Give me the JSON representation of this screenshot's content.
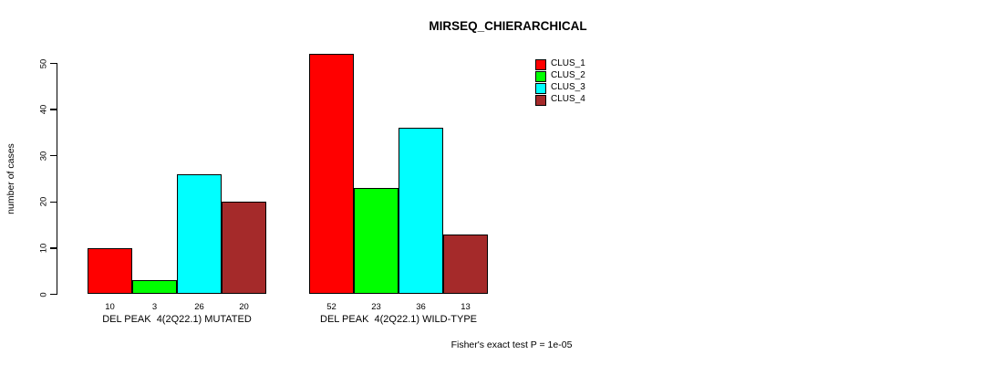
{
  "chart_data": {
    "type": "bar",
    "title": "MIRSEQ_CHIERARCHICAL",
    "xlabel": "",
    "ylabel": "number of cases",
    "ylim": [
      0,
      52
    ],
    "yticks": [
      0,
      10,
      20,
      30,
      40,
      50
    ],
    "grid": false,
    "legend_position": "top-right",
    "categories": [
      "DEL PEAK  4(2Q22.1) MUTATED",
      "DEL PEAK  4(2Q22.1) WILD-TYPE"
    ],
    "series": [
      {
        "name": "CLUS_1",
        "color": "#ff0000",
        "values": [
          10,
          52
        ]
      },
      {
        "name": "CLUS_2",
        "color": "#00ff00",
        "values": [
          3,
          23
        ]
      },
      {
        "name": "CLUS_3",
        "color": "#00ffff",
        "values": [
          26,
          36
        ]
      },
      {
        "name": "CLUS_4",
        "color": "#a52a2a",
        "values": [
          20,
          13
        ]
      }
    ],
    "bar_value_labels": [
      [
        "10",
        "3",
        "26",
        "20"
      ],
      [
        "52",
        "23",
        "36",
        "13"
      ]
    ],
    "annotation": "Fisher's exact test P = 1e-05",
    "colors": {
      "axis": "#000000",
      "bar_border": "#000000",
      "background": "#ffffff"
    }
  }
}
